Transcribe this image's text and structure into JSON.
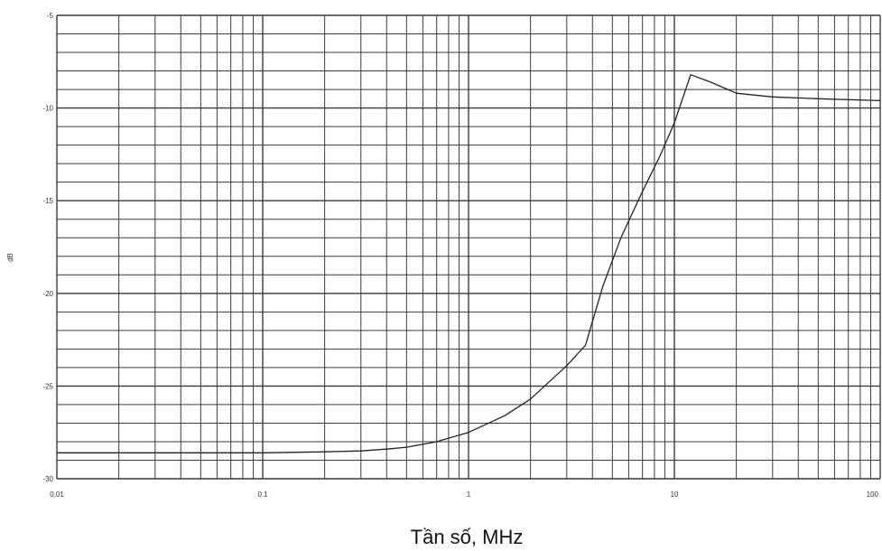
{
  "chart_data": {
    "type": "line",
    "title": "",
    "xlabel": "Tần số, MHz",
    "ylabel": "dB",
    "x_scale": "log",
    "xlim": [
      0.01,
      100
    ],
    "ylim": [
      -30,
      -5
    ],
    "x_ticks": [
      0.01,
      0.1,
      1,
      10,
      100
    ],
    "x_tick_labels": [
      "0.01",
      "0.1",
      "1",
      "10",
      "100"
    ],
    "y_ticks": [
      -30,
      -25,
      -20,
      -15,
      -10,
      -5
    ],
    "y_tick_labels": [
      "-30",
      "-25",
      "-20",
      "-15",
      "-10",
      "-5"
    ],
    "y_minor_step": 1,
    "grid": true,
    "legend": "none",
    "line_color": "#222222",
    "grid_color": "#3a3a3a",
    "series": [
      {
        "x": [
          0.01,
          0.02,
          0.05,
          0.1,
          0.2,
          0.3,
          0.4,
          0.5,
          0.7,
          1,
          1.5,
          2,
          3,
          3.7,
          4.5,
          5.5,
          7,
          8.5,
          10,
          12,
          15,
          20,
          30,
          50,
          100
        ],
        "y": [
          -28.6,
          -28.6,
          -28.6,
          -28.6,
          -28.55,
          -28.5,
          -28.4,
          -28.3,
          -28.0,
          -27.5,
          -26.6,
          -25.7,
          -23.9,
          -22.8,
          -19.6,
          -17.0,
          -14.5,
          -12.6,
          -10.8,
          -8.2,
          -8.6,
          -9.2,
          -9.4,
          -9.5,
          -9.6
        ]
      }
    ]
  }
}
